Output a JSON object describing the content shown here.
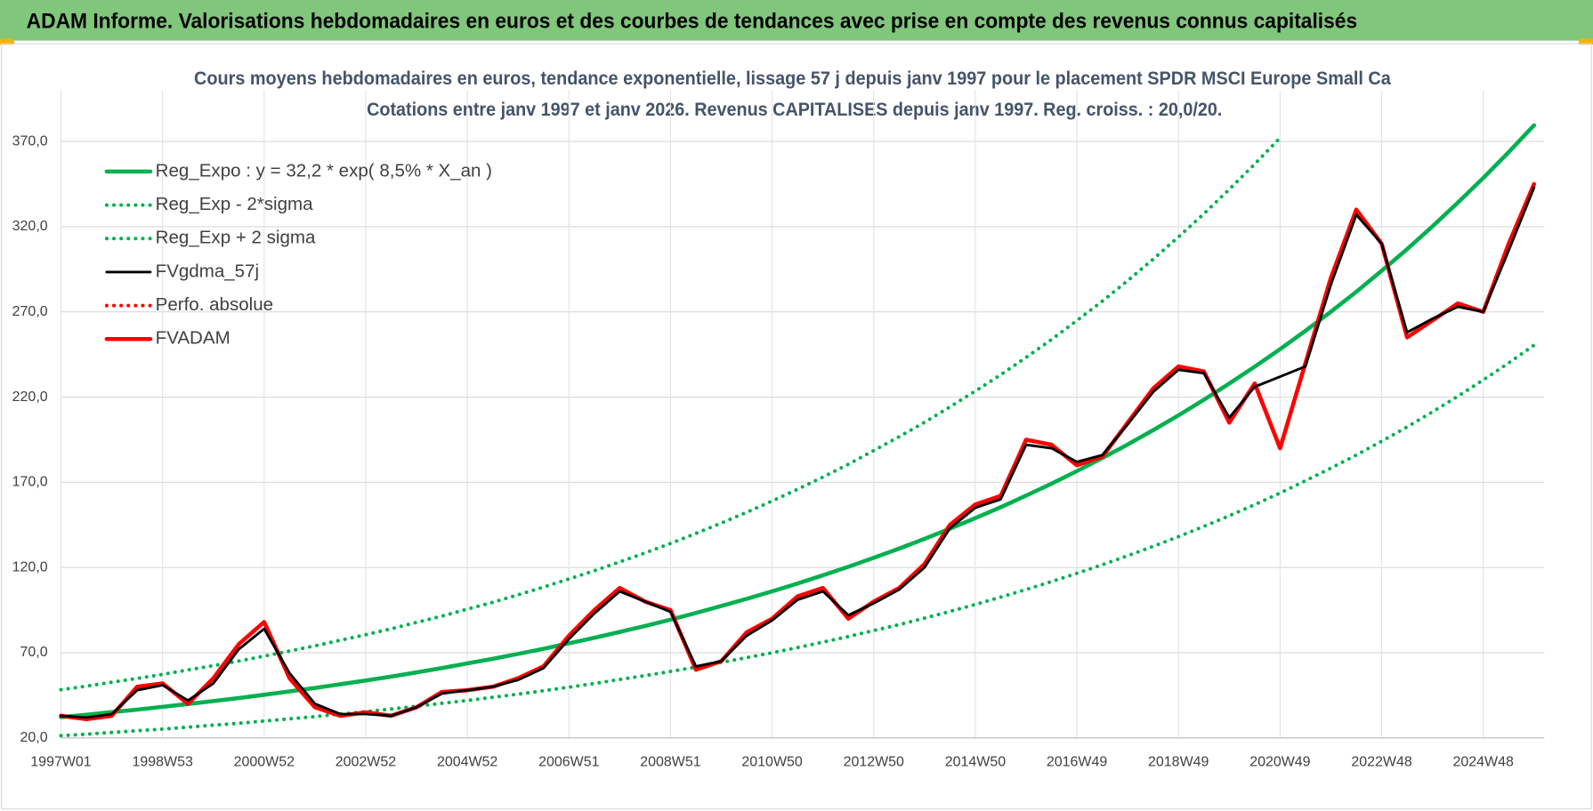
{
  "header": {
    "title": "ADAM Informe. Valorisations hebdomadaires en euros et des courbes de tendances avec prise en compte des revenus connus capitalisés"
  },
  "chart_data": {
    "type": "line",
    "title": "Cours moyens hebdomadaires en euros, tendance exponentielle, lissage 57 j depuis janv 1997  pour le  placement SPDR MSCI Europe Small Ca",
    "subtitle": "Cotations entre janv 1997 et janv 2026. Revenus CAPITALISES depuis janv 1997. Reg. croiss. : 20,0/20.",
    "categories": [
      "1997W01",
      null,
      null,
      null,
      "1998W53",
      null,
      null,
      null,
      "2000W52",
      null,
      null,
      null,
      "2002W52",
      null,
      null,
      null,
      "2004W52",
      null,
      null,
      null,
      "2006W51",
      null,
      null,
      null,
      "2008W51",
      null,
      null,
      null,
      "2010W50",
      null,
      null,
      null,
      "2012W50",
      null,
      null,
      null,
      "2014W50",
      null,
      null,
      null,
      "2016W49",
      null,
      null,
      null,
      "2018W49",
      null,
      null,
      null,
      "2020W49",
      null,
      null,
      null,
      "2022W48",
      null,
      null,
      null,
      "2024W48",
      null,
      null
    ],
    "ylim": [
      20,
      400
    ],
    "yticks": [
      {
        "value": 20,
        "label": "20,0"
      },
      {
        "value": 70,
        "label": "70,0"
      },
      {
        "value": 120,
        "label": "120,0"
      },
      {
        "value": 170,
        "label": "170,0"
      },
      {
        "value": 220,
        "label": "220,0"
      },
      {
        "value": 270,
        "label": "270,0"
      },
      {
        "value": 320,
        "label": "320,0"
      },
      {
        "value": 370,
        "label": "370,0"
      }
    ],
    "grid": true,
    "legend": "top-left",
    "series": [
      {
        "name": "Reg_Expo : y = 32,2 * exp( 8,5% *  X_an )",
        "color": "#00b050",
        "style": "solid",
        "values": [
          32.2,
          33.6,
          35.1,
          36.6,
          38.2,
          39.9,
          41.6,
          43.4,
          45.3,
          47.3,
          49.3,
          51.5,
          53.7,
          56.0,
          58.5,
          61.0,
          63.7,
          66.4,
          69.3,
          72.3,
          75.5,
          78.7,
          82.2,
          85.7,
          89.4,
          93.3,
          97.4,
          101.6,
          106.0,
          110.6,
          115.4,
          120.4,
          125.7,
          131.1,
          136.8,
          142.8,
          149.0,
          155.4,
          162.2,
          169.2,
          176.6,
          184.2,
          192.2,
          200.6,
          209.3,
          218.4,
          227.9,
          237.8,
          248.1,
          258.9,
          270.1,
          281.8,
          294.1,
          306.8,
          320.2,
          334.1,
          348.6,
          363.7,
          379.5
        ]
      },
      {
        "name": "Reg_Exp - 2*sigma",
        "color": "#00b050",
        "style": "dotted",
        "values": [
          21.3,
          22.2,
          23.2,
          24.2,
          25.2,
          26.3,
          27.5,
          28.6,
          29.9,
          31.2,
          32.5,
          34.0,
          35.4,
          37.0,
          38.6,
          40.3,
          42.0,
          43.8,
          45.7,
          47.7,
          49.8,
          51.9,
          54.3,
          56.6,
          59.0,
          61.6,
          64.3,
          67.1,
          70.0,
          73.0,
          76.2,
          79.5,
          83.0,
          86.5,
          90.3,
          94.2,
          98.3,
          102.6,
          107.1,
          111.7,
          116.6,
          121.6,
          126.9,
          132.4,
          138.1,
          144.1,
          150.4,
          156.9,
          163.7,
          170.9,
          178.3,
          186.0,
          194.1,
          202.5,
          211.3,
          220.5,
          230.1,
          240.0,
          250.5
        ]
      },
      {
        "name": "Reg_Exp + 2 sigma",
        "color": "#00b050",
        "style": "dotted",
        "values": [
          48.3,
          50.4,
          52.7,
          54.9,
          57.3,
          59.9,
          62.4,
          65.1,
          68.0,
          71.0,
          74.0,
          77.3,
          80.6,
          84.0,
          87.8,
          91.5,
          95.6,
          99.6,
          104.0,
          108.5,
          113.3,
          118.1,
          123.3,
          128.6,
          134.1,
          140.0,
          146.1,
          152.4,
          159.0,
          165.9,
          173.1,
          180.6,
          188.6,
          196.7,
          205.2,
          214.2,
          223.5,
          233.1,
          243.3,
          253.8,
          264.9,
          276.3,
          288.3,
          300.9,
          314.0,
          327.6,
          341.9,
          356.7,
          372.2,
          null,
          null,
          null,
          null,
          null,
          null,
          null,
          null,
          null,
          null
        ]
      },
      {
        "name": "FVgdma_57j",
        "color": "#000000",
        "style": "solid",
        "values": [
          33,
          32,
          34,
          48,
          51,
          42,
          52,
          72,
          84,
          58,
          40,
          34,
          34,
          33,
          38,
          46,
          48,
          50,
          54,
          61,
          78,
          93,
          106,
          100,
          94,
          62,
          65,
          80,
          89,
          101,
          106,
          92,
          99,
          107,
          120,
          143,
          155,
          160,
          192,
          190,
          182,
          186,
          204,
          223,
          236,
          234,
          208,
          226,
          232,
          238,
          286,
          327,
          310,
          258,
          266,
          273,
          270,
          306,
          343
        ]
      },
      {
        "name": "Perfo. absolue",
        "color": "#ff0000",
        "style": "dotted",
        "values": [
          null,
          null,
          null,
          null,
          null,
          null,
          null,
          null,
          null,
          null,
          null,
          null,
          null,
          null,
          null,
          null,
          null,
          null,
          null,
          null,
          null,
          null,
          null,
          null,
          null,
          null,
          null,
          null,
          null,
          null,
          null,
          null,
          null,
          null,
          null,
          null,
          null,
          null,
          null,
          null,
          null,
          null,
          null,
          null,
          null,
          null,
          null,
          null,
          null,
          null,
          null,
          null,
          null,
          null,
          null,
          null,
          null,
          null,
          null
        ]
      },
      {
        "name": "FVADAM",
        "color": "#ff0000",
        "style": "solid",
        "values": [
          33,
          31,
          33,
          50,
          52,
          40,
          55,
          75,
          88,
          55,
          38,
          33,
          35,
          33,
          38,
          47,
          48,
          50,
          55,
          62,
          80,
          95,
          108,
          100,
          95,
          60,
          65,
          82,
          90,
          103,
          108,
          90,
          100,
          108,
          122,
          145,
          157,
          162,
          195,
          192,
          180,
          185,
          205,
          225,
          238,
          235,
          205,
          228,
          190,
          240,
          290,
          330,
          310,
          255,
          265,
          275,
          270,
          310,
          345
        ]
      }
    ]
  }
}
